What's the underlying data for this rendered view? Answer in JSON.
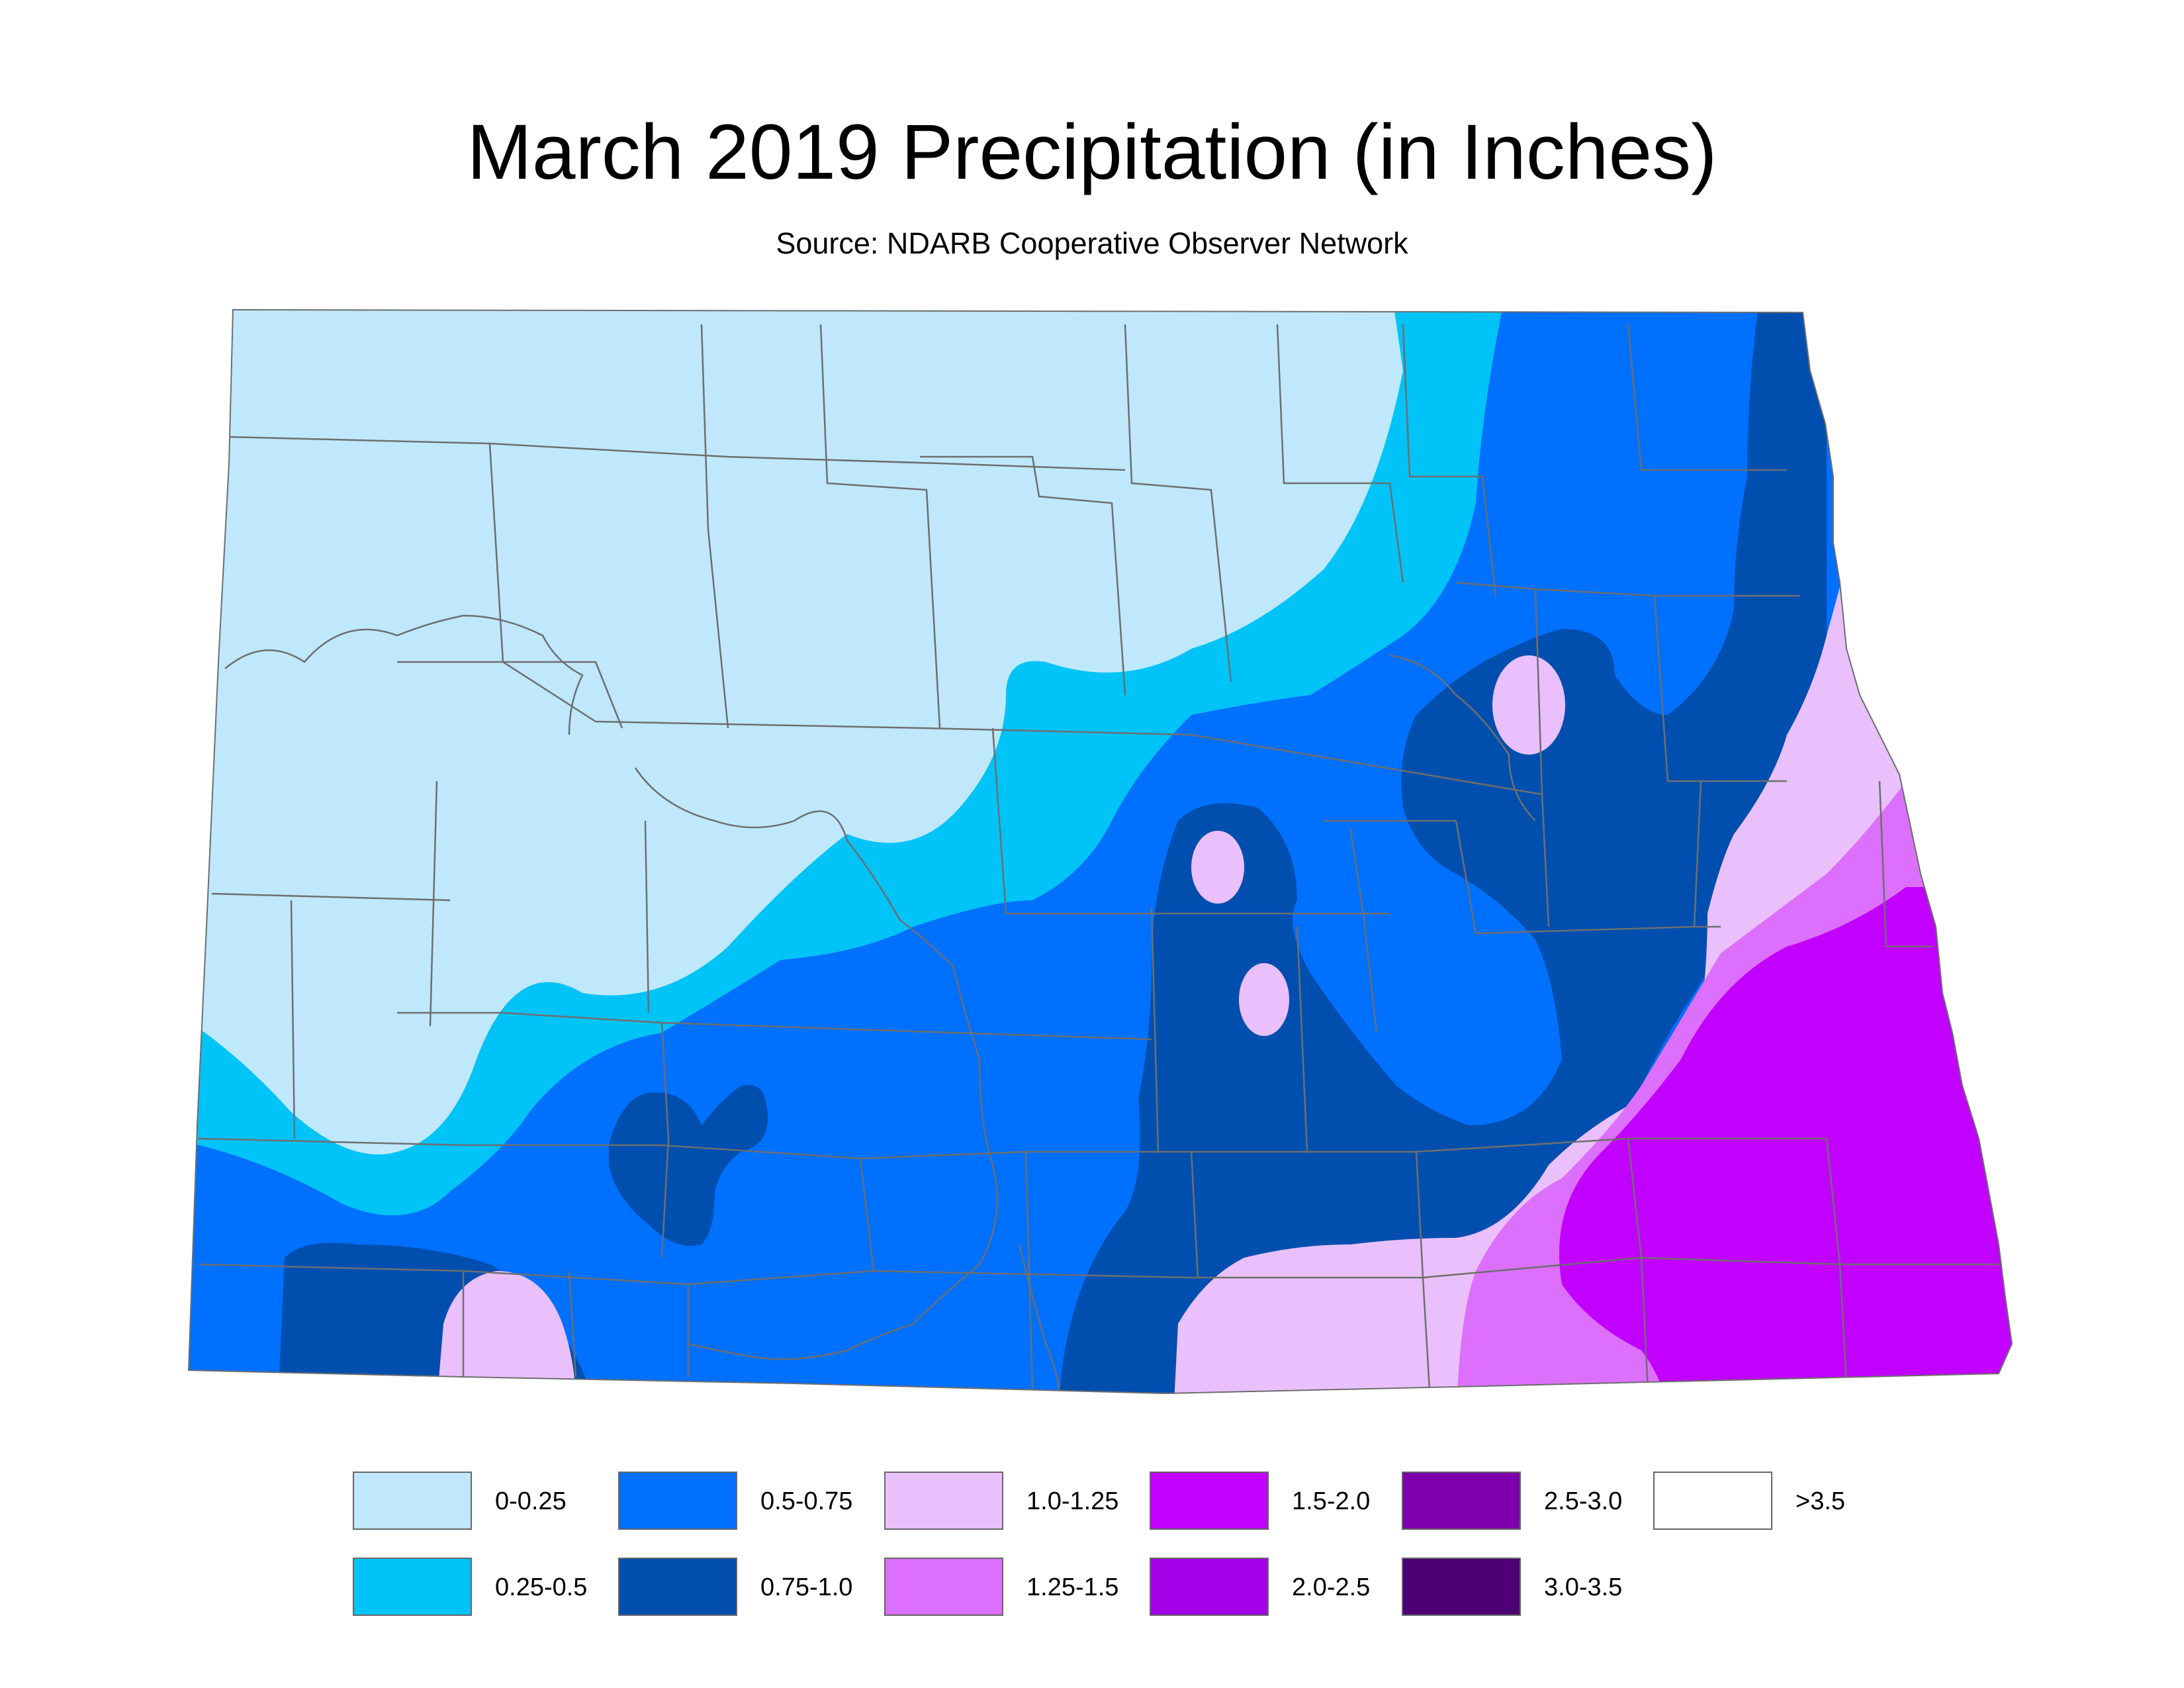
{
  "title": "March 2019 Precipitation (in Inches)",
  "subtitle": "Source: NDARB Cooperative Observer Network",
  "map": {
    "region": "North Dakota",
    "colors": {
      "c0": "#bfe8fc",
      "c1": "#00c3f8",
      "c2": "#0070ff",
      "c3": "#004faf",
      "c4": "#e9c0fc",
      "c5": "#dc70fc",
      "c6": "#c200ff"
    },
    "county_line_color": "#6e6e6e"
  },
  "legend": {
    "items": [
      {
        "label": "0-0.25",
        "color": "#bfe8fc"
      },
      {
        "label": "0.25-0.5",
        "color": "#00c3f8"
      },
      {
        "label": "0.5-0.75",
        "color": "#0070ff"
      },
      {
        "label": "0.75-1.0",
        "color": "#004faf"
      },
      {
        "label": "1.0-1.25",
        "color": "#e9c0fc"
      },
      {
        "label": "1.25-1.5",
        "color": "#dc70fc"
      },
      {
        "label": "1.5-2.0",
        "color": "#c200ff"
      },
      {
        "label": "2.0-2.5",
        "color": "#a200e6"
      },
      {
        "label": "2.5-3.0",
        "color": "#7e00ac"
      },
      {
        "label": "3.0-3.5",
        "color": "#4c0073"
      },
      {
        "label": ">3.5",
        "color": "#ffffff"
      }
    ]
  }
}
